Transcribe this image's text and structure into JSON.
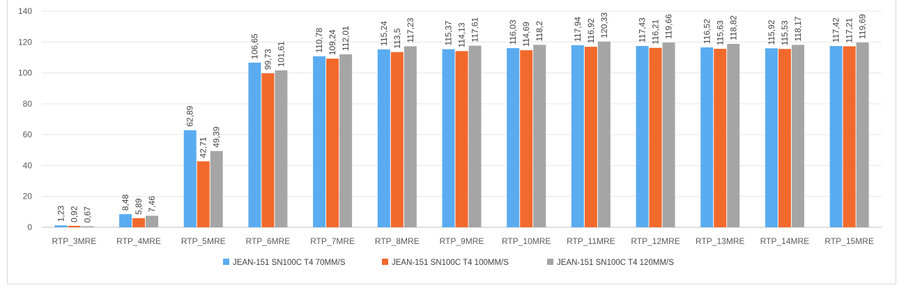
{
  "chart_data": {
    "type": "bar",
    "title": "",
    "xlabel": "",
    "ylabel": "",
    "ylim": [
      0,
      140
    ],
    "yticks": [
      "0",
      "20",
      "40",
      "60",
      "80",
      "100",
      "120",
      "140"
    ],
    "grid": true,
    "legend_position": "bottom",
    "categories": [
      "RTP_3MRE",
      "RTP_4MRE",
      "RTP_5MRE",
      "RTP_6MRE",
      "RTP_7MRE",
      "RTP_8MRE",
      "RTP_9MRE",
      "RTP_10MRE",
      "RTP_11MRE",
      "RTP_12MRE",
      "RTP_13MRE",
      "RTP_14MRE",
      "RTP_15MRE"
    ],
    "series": [
      {
        "name": "JEAN-151 SN100C T4 70MM/S",
        "color": "#5aabf0",
        "values": [
          1.23,
          8.48,
          62.89,
          106.65,
          110.78,
          115.24,
          115.37,
          116.03,
          117.94,
          117.43,
          116.52,
          115.92,
          117.42
        ],
        "labels": [
          "1,23",
          "8,48",
          "62,89",
          "106,65",
          "110,78",
          "115,24",
          "115,37",
          "116,03",
          "117,94",
          "117,43",
          "116,52",
          "115,92",
          "117,42"
        ]
      },
      {
        "name": "JEAN-151 SN100C T4 100MM/S",
        "color": "#f2692c",
        "values": [
          0.92,
          5.89,
          42.71,
          99.73,
          109.24,
          113.5,
          114.13,
          114.69,
          116.92,
          116.21,
          115.63,
          115.53,
          117.21
        ],
        "labels": [
          "0,92",
          "5,89",
          "42,71",
          "99,73",
          "109,24",
          "113,5",
          "114,13",
          "114,69",
          "116,92",
          "116,21",
          "115,63",
          "115,53",
          "117,21"
        ]
      },
      {
        "name": "JEAN-151 SN100C T4 120MM/S",
        "color": "#a5a5a5",
        "values": [
          0.67,
          7.46,
          49.39,
          101.61,
          112.01,
          117.23,
          117.61,
          118.2,
          120.33,
          119.66,
          118.82,
          118.17,
          119.69
        ],
        "labels": [
          "0,67",
          "7,46",
          "49,39",
          "101,61",
          "112,01",
          "117,23",
          "117,61",
          "118,2",
          "120,33",
          "119,66",
          "118,82",
          "118,17",
          "119,69"
        ]
      }
    ]
  }
}
